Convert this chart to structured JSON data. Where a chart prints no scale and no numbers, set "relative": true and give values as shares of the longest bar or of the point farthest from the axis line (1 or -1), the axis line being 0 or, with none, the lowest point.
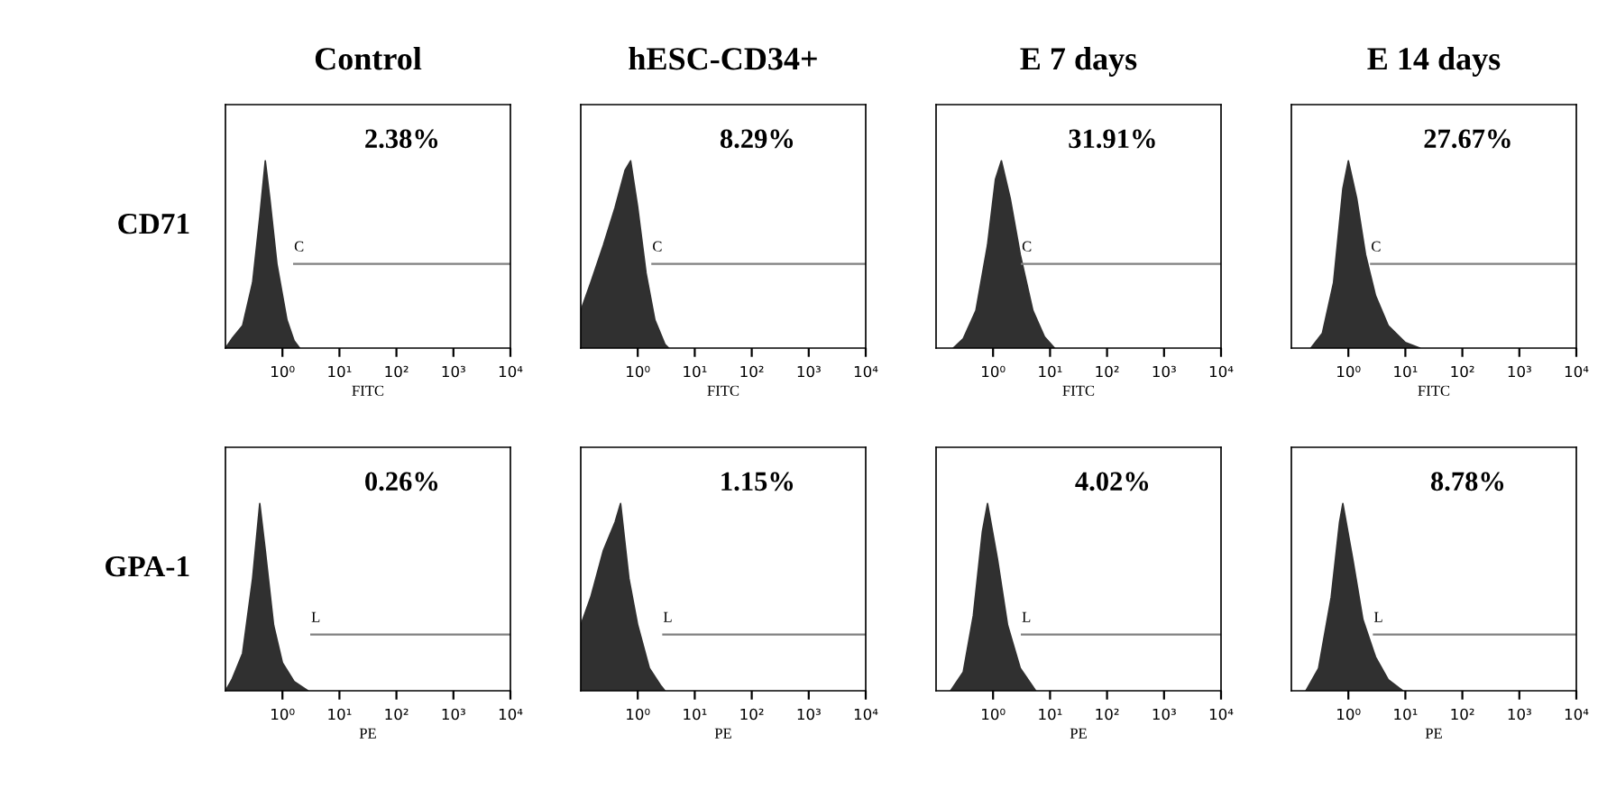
{
  "chart_data": [
    {
      "type": "area",
      "title": "Control",
      "ylabel": "CD71",
      "xlabel": "FITC",
      "relative": true,
      "log": "x",
      "xlim": [
        0.1,
        10000
      ],
      "xticks": [
        {
          "value": 1,
          "label": "10⁰"
        },
        {
          "value": 10,
          "label": "10¹"
        },
        {
          "value": 100,
          "label": "10²"
        },
        {
          "value": 1000,
          "label": "10³"
        },
        {
          "value": 10000,
          "label": "10⁴"
        }
      ],
      "annotations": [
        "2.38%",
        {
          "text": "C",
          "x": 1.6,
          "y": 0.45
        }
      ],
      "series": [
        {
          "color": "#303030",
          "x": [
            0.1,
            0.13,
            0.2,
            0.3,
            0.4,
            0.5,
            0.6,
            0.8,
            1.2,
            1.6,
            2
          ],
          "values": [
            0,
            0.05,
            0.12,
            0.35,
            0.7,
            1.0,
            0.8,
            0.45,
            0.15,
            0.04,
            0
          ]
        },
        {
          "type": "line",
          "color": "#808080",
          "x": [
            1.6,
            10000
          ],
          "values": [
            0.45,
            0.45
          ]
        }
      ]
    },
    {
      "type": "area",
      "title": "hESC-CD34+",
      "xlabel": "FITC",
      "relative": true,
      "log": "x",
      "xlim": [
        0.1,
        10000
      ],
      "xticks": [
        {
          "value": 1,
          "label": "10⁰"
        },
        {
          "value": 10,
          "label": "10¹"
        },
        {
          "value": 100,
          "label": "10²"
        },
        {
          "value": 1000,
          "label": "10³"
        },
        {
          "value": 10000,
          "label": "10⁴"
        }
      ],
      "annotations": [
        "8.29%",
        {
          "text": "C",
          "x": 1.8,
          "y": 0.45
        }
      ],
      "series": [
        {
          "color": "#303030",
          "x": [
            0.1,
            0.15,
            0.25,
            0.4,
            0.6,
            0.75,
            1,
            1.4,
            2,
            3,
            3.5
          ],
          "values": [
            0.2,
            0.35,
            0.55,
            0.75,
            0.95,
            1.0,
            0.75,
            0.4,
            0.15,
            0.02,
            0
          ]
        },
        {
          "type": "line",
          "color": "#808080",
          "x": [
            1.8,
            10000
          ],
          "values": [
            0.45,
            0.45
          ]
        }
      ]
    },
    {
      "type": "area",
      "title": "E 7 days",
      "xlabel": "FITC",
      "relative": true,
      "log": "x",
      "xlim": [
        0.1,
        10000
      ],
      "xticks": [
        {
          "value": 1,
          "label": "10⁰"
        },
        {
          "value": 10,
          "label": "10¹"
        },
        {
          "value": 100,
          "label": "10²"
        },
        {
          "value": 1000,
          "label": "10³"
        },
        {
          "value": 10000,
          "label": "10⁴"
        }
      ],
      "annotations": [
        "31.91%",
        {
          "text": "C",
          "x": 3.2,
          "y": 0.45
        }
      ],
      "series": [
        {
          "color": "#303030",
          "x": [
            0.2,
            0.3,
            0.5,
            0.8,
            1.1,
            1.4,
            2,
            3,
            5,
            8,
            12
          ],
          "values": [
            0,
            0.05,
            0.2,
            0.55,
            0.9,
            1.0,
            0.8,
            0.5,
            0.2,
            0.06,
            0
          ]
        },
        {
          "type": "line",
          "color": "#808080",
          "x": [
            3.2,
            10000
          ],
          "values": [
            0.45,
            0.45
          ]
        }
      ]
    },
    {
      "type": "area",
      "title": "E 14 days",
      "xlabel": "FITC",
      "relative": true,
      "log": "x",
      "xlim": [
        0.1,
        10000
      ],
      "xticks": [
        {
          "value": 1,
          "label": "10⁰"
        },
        {
          "value": 10,
          "label": "10¹"
        },
        {
          "value": 100,
          "label": "10²"
        },
        {
          "value": 1000,
          "label": "10³"
        },
        {
          "value": 10000,
          "label": "10⁴"
        }
      ],
      "annotations": [
        "27.67%",
        {
          "text": "C",
          "x": 2.5,
          "y": 0.45
        }
      ],
      "series": [
        {
          "color": "#303030",
          "x": [
            0.22,
            0.35,
            0.55,
            0.8,
            1,
            1.4,
            2,
            3,
            5,
            10,
            18
          ],
          "values": [
            0,
            0.08,
            0.35,
            0.85,
            1.0,
            0.8,
            0.5,
            0.28,
            0.12,
            0.03,
            0
          ]
        },
        {
          "type": "line",
          "color": "#808080",
          "x": [
            2.5,
            10000
          ],
          "values": [
            0.45,
            0.45
          ]
        }
      ]
    },
    {
      "type": "area",
      "ylabel": "GPA-1",
      "xlabel": "PE",
      "relative": true,
      "log": "x",
      "xlim": [
        0.1,
        10000
      ],
      "xticks": [
        {
          "value": 1,
          "label": "10⁰"
        },
        {
          "value": 10,
          "label": "10¹"
        },
        {
          "value": 100,
          "label": "10²"
        },
        {
          "value": 1000,
          "label": "10³"
        },
        {
          "value": 10000,
          "label": "10⁴"
        }
      ],
      "annotations": [
        "0.26%",
        {
          "text": "L",
          "x": 3.2,
          "y": 0.3
        }
      ],
      "series": [
        {
          "color": "#303030",
          "x": [
            0.1,
            0.13,
            0.2,
            0.3,
            0.4,
            0.5,
            0.7,
            1,
            1.6,
            2.8
          ],
          "values": [
            0,
            0.06,
            0.2,
            0.6,
            1.0,
            0.75,
            0.35,
            0.15,
            0.05,
            0
          ]
        },
        {
          "type": "line",
          "color": "#808080",
          "x": [
            3.2,
            10000
          ],
          "values": [
            0.3,
            0.3
          ]
        }
      ]
    },
    {
      "type": "area",
      "xlabel": "PE",
      "relative": true,
      "log": "x",
      "xlim": [
        0.1,
        10000
      ],
      "xticks": [
        {
          "value": 1,
          "label": "10⁰"
        },
        {
          "value": 10,
          "label": "10¹"
        },
        {
          "value": 100,
          "label": "10²"
        },
        {
          "value": 1000,
          "label": "10³"
        },
        {
          "value": 10000,
          "label": "10⁴"
        }
      ],
      "annotations": [
        "1.15%",
        {
          "text": "L",
          "x": 2.8,
          "y": 0.3
        }
      ],
      "series": [
        {
          "color": "#303030",
          "x": [
            0.1,
            0.15,
            0.25,
            0.4,
            0.5,
            0.7,
            1,
            1.6,
            2.5,
            3
          ],
          "values": [
            0.35,
            0.5,
            0.75,
            0.9,
            1.0,
            0.6,
            0.35,
            0.12,
            0.03,
            0
          ]
        },
        {
          "type": "line",
          "color": "#808080",
          "x": [
            2.8,
            10000
          ],
          "values": [
            0.3,
            0.3
          ]
        }
      ]
    },
    {
      "type": "area",
      "xlabel": "PE",
      "relative": true,
      "log": "x",
      "xlim": [
        0.1,
        10000
      ],
      "xticks": [
        {
          "value": 1,
          "label": "10⁰"
        },
        {
          "value": 10,
          "label": "10¹"
        },
        {
          "value": 100,
          "label": "10²"
        },
        {
          "value": 1000,
          "label": "10³"
        },
        {
          "value": 10000,
          "label": "10⁴"
        }
      ],
      "annotations": [
        "4.02%",
        {
          "text": "L",
          "x": 3.2,
          "y": 0.3
        }
      ],
      "series": [
        {
          "color": "#303030",
          "x": [
            0.18,
            0.3,
            0.45,
            0.65,
            0.8,
            1.2,
            1.8,
            3,
            5.6
          ],
          "values": [
            0,
            0.1,
            0.4,
            0.85,
            1.0,
            0.7,
            0.35,
            0.12,
            0
          ]
        },
        {
          "type": "line",
          "color": "#808080",
          "x": [
            3.2,
            10000
          ],
          "values": [
            0.3,
            0.3
          ]
        }
      ]
    },
    {
      "type": "area",
      "xlabel": "PE",
      "relative": true,
      "log": "x",
      "xlim": [
        0.1,
        10000
      ],
      "xticks": [
        {
          "value": 1,
          "label": "10⁰"
        },
        {
          "value": 10,
          "label": "10¹"
        },
        {
          "value": 100,
          "label": "10²"
        },
        {
          "value": 1000,
          "label": "10³"
        },
        {
          "value": 10000,
          "label": "10⁴"
        }
      ],
      "annotations": [
        "8.78%",
        {
          "text": "L",
          "x": 2.8,
          "y": 0.3
        }
      ],
      "series": [
        {
          "color": "#303030",
          "x": [
            0.18,
            0.3,
            0.5,
            0.7,
            0.8,
            1.2,
            1.8,
            3,
            5,
            9
          ],
          "values": [
            0,
            0.12,
            0.5,
            0.9,
            1.0,
            0.7,
            0.38,
            0.18,
            0.06,
            0
          ]
        },
        {
          "type": "line",
          "color": "#808080",
          "x": [
            2.8,
            10000
          ],
          "values": [
            0.3,
            0.3
          ]
        }
      ]
    }
  ]
}
